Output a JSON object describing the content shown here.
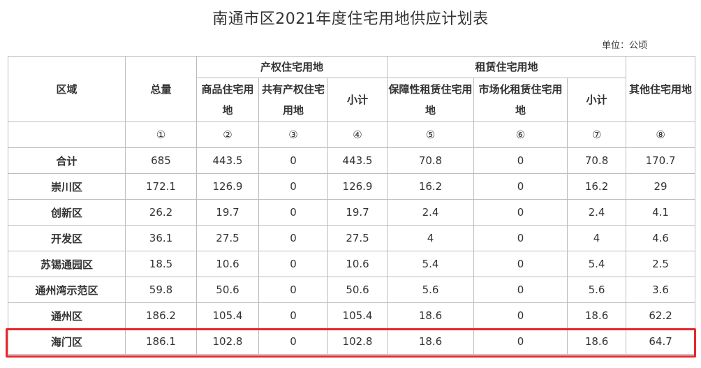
{
  "title": "南通市区2021年度住宅用地供应计划表",
  "unit": "单位：公顷",
  "headers": {
    "region": "区域",
    "total": "总量",
    "property_group": "产权住宅用地",
    "rental_group": "租赁住宅用地",
    "other": "其他住宅用地",
    "commercial": "商品住宅用地",
    "shared": "共有产权住宅用地",
    "subtotal_property": "小计",
    "affordable_rental": "保障性租赁住宅用地",
    "market_rental": "市场化租赁住宅用地",
    "subtotal_rental": "小计"
  },
  "index_row": [
    "①",
    "②",
    "③",
    "④",
    "⑤",
    "⑥",
    "⑦",
    "⑧"
  ],
  "rows": [
    {
      "region": "合计",
      "values": [
        "685",
        "443.5",
        "0",
        "443.5",
        "70.8",
        "0",
        "70.8",
        "170.7"
      ]
    },
    {
      "region": "崇川区",
      "values": [
        "172.1",
        "126.9",
        "0",
        "126.9",
        "16.2",
        "0",
        "16.2",
        "29"
      ]
    },
    {
      "region": "创新区",
      "values": [
        "26.2",
        "19.7",
        "0",
        "19.7",
        "2.4",
        "0",
        "2.4",
        "4.1"
      ]
    },
    {
      "region": "开发区",
      "values": [
        "36.1",
        "27.5",
        "0",
        "27.5",
        "4",
        "0",
        "4",
        "4.6"
      ]
    },
    {
      "region": "苏锡通园区",
      "values": [
        "18.5",
        "10.6",
        "0",
        "10.6",
        "5.4",
        "0",
        "5.4",
        "2.5"
      ]
    },
    {
      "region": "通州湾示范区",
      "values": [
        "59.8",
        "50.6",
        "0",
        "50.6",
        "5.6",
        "0",
        "5.6",
        "3.6"
      ]
    },
    {
      "region": "通州区",
      "values": [
        "186.2",
        "105.4",
        "0",
        "105.4",
        "18.6",
        "0",
        "18.6",
        "62.2"
      ]
    },
    {
      "region": "海门区",
      "values": [
        "186.1",
        "102.8",
        "0",
        "102.8",
        "18.6",
        "0",
        "18.6",
        "64.7"
      ]
    }
  ],
  "highlight_color": "#e8262c"
}
